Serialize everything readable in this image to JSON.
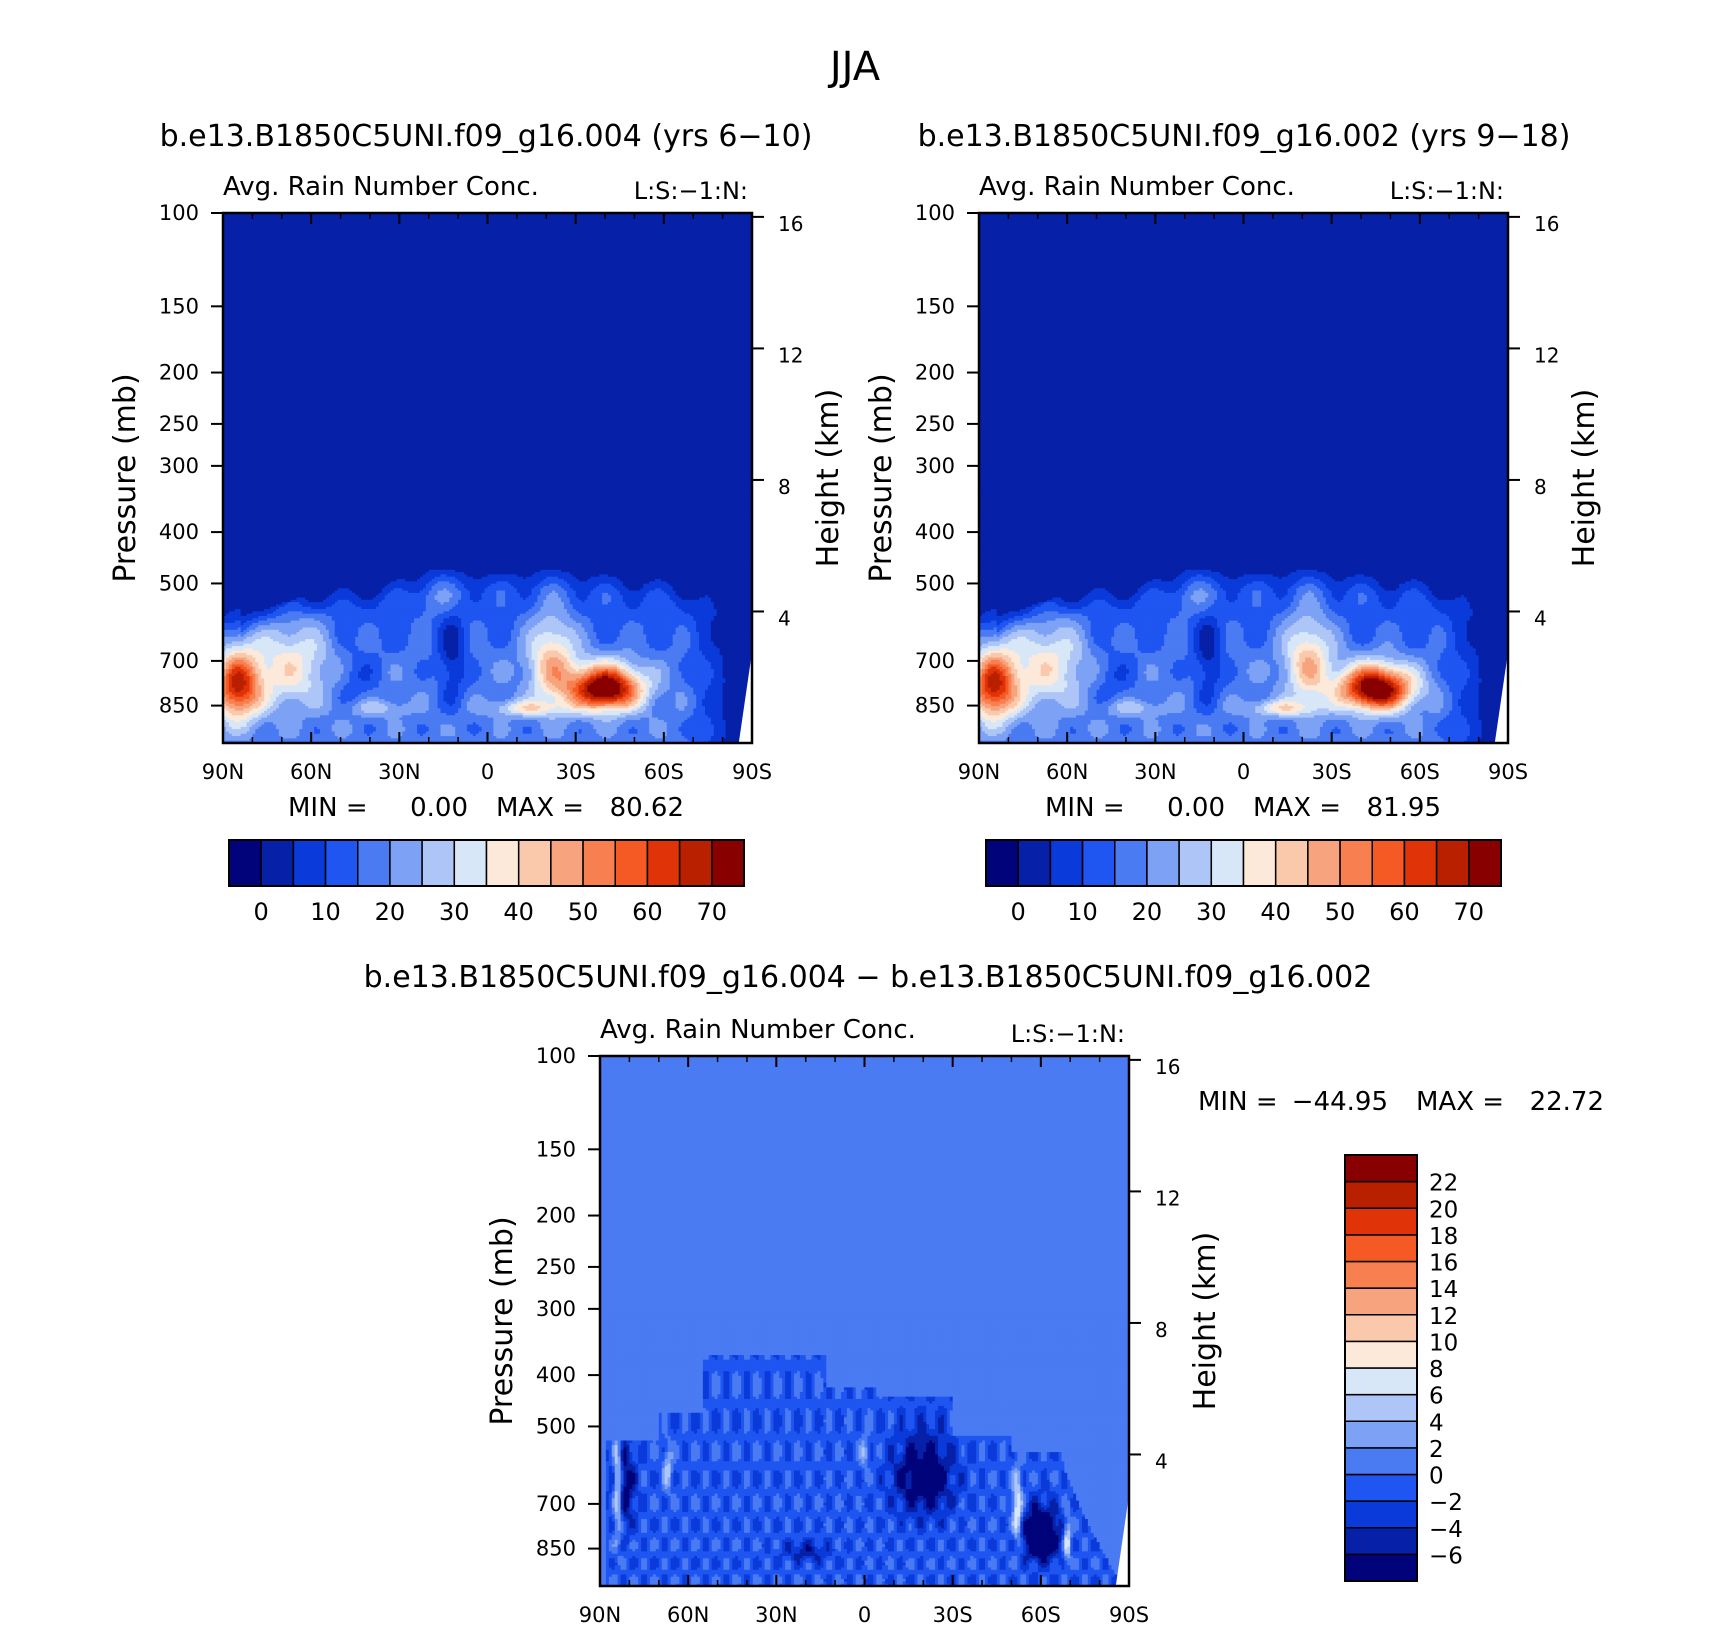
{
  "figure_title": "JJA",
  "panels": [
    {
      "id": "top-left",
      "case_title": "b.e13.B1850C5UNI.f09_g16.004 (yrs 6−10)",
      "variable_title": "Avg. Rain Number Conc.",
      "tag": "L:S:−1:N:",
      "ylabel_left": "Pressure (mb)",
      "ylabel_right": "Height (km)",
      "stats": {
        "min_label": "MIN =",
        "min_value": "0.00",
        "max_label": "MAX =",
        "max_value": "80.62"
      }
    },
    {
      "id": "top-right",
      "case_title": "b.e13.B1850C5UNI.f09_g16.002 (yrs 9−18)",
      "variable_title": "Avg. Rain Number Conc.",
      "tag": "L:S:−1:N:",
      "ylabel_left": "Pressure (mb)",
      "ylabel_right": "Height (km)",
      "stats": {
        "min_label": "MIN =",
        "min_value": "0.00",
        "max_label": "MAX =",
        "max_value": "81.95"
      }
    },
    {
      "id": "bottom",
      "case_title": "b.e13.B1850C5UNI.f09_g16.004 − b.e13.B1850C5UNI.f09_g16.002",
      "variable_title": "Avg. Rain Number Conc.",
      "tag": "L:S:−1:N:",
      "ylabel_left": "Pressure (mb)",
      "ylabel_right": "Height (km)",
      "stats": {
        "min_label": "MIN =",
        "min_value": "−44.95",
        "max_label": "MAX =",
        "max_value": "22.72"
      }
    }
  ],
  "chart_data": [
    {
      "type": "heatmap",
      "panel": "top-left",
      "title": "b.e13.B1850C5UNI.f09_g16.004 (yrs 6−10)",
      "xlabel": "",
      "ylabel": "Pressure (mb)",
      "ylabel_right": "Height (km)",
      "x_ticks": [
        "90N",
        "60N",
        "30N",
        "0",
        "30S",
        "60S",
        "90S"
      ],
      "x_tick_values": [
        90,
        60,
        30,
        0,
        -30,
        -60,
        -90
      ],
      "xlim": [
        90,
        -90
      ],
      "y_ticks": [
        100,
        150,
        200,
        250,
        300,
        400,
        500,
        700,
        850
      ],
      "ylim": [
        1000,
        100
      ],
      "y_scale": "log",
      "y_right_ticks": [
        16,
        12,
        8,
        4
      ],
      "min": 0.0,
      "max": 80.62,
      "field": {
        "max_lat": -40,
        "max_p": 790,
        "secondary_lat": 85,
        "secondary_p": 780,
        "top_p": 450
      },
      "colorbar": {
        "orientation": "horizontal",
        "levels": [
          0,
          5,
          10,
          15,
          20,
          25,
          30,
          35,
          40,
          45,
          50,
          55,
          60,
          65,
          70,
          75
        ],
        "tick_labels": [
          "0",
          "10",
          "20",
          "30",
          "40",
          "50",
          "60",
          "70"
        ]
      }
    },
    {
      "type": "heatmap",
      "panel": "top-right",
      "title": "b.e13.B1850C5UNI.f09_g16.002 (yrs 9−18)",
      "xlabel": "",
      "ylabel": "Pressure (mb)",
      "ylabel_right": "Height (km)",
      "x_ticks": [
        "90N",
        "60N",
        "30N",
        "0",
        "30S",
        "60S",
        "90S"
      ],
      "x_tick_values": [
        90,
        60,
        30,
        0,
        -30,
        -60,
        -90
      ],
      "xlim": [
        90,
        -90
      ],
      "y_ticks": [
        100,
        150,
        200,
        250,
        300,
        400,
        500,
        700,
        850
      ],
      "ylim": [
        1000,
        100
      ],
      "y_scale": "log",
      "y_right_ticks": [
        16,
        12,
        8,
        4
      ],
      "min": 0.0,
      "max": 81.95,
      "field": {
        "max_lat": -45,
        "max_p": 790,
        "secondary_lat": 85,
        "secondary_p": 780,
        "top_p": 450
      },
      "colorbar": {
        "orientation": "horizontal",
        "levels": [
          0,
          5,
          10,
          15,
          20,
          25,
          30,
          35,
          40,
          45,
          50,
          55,
          60,
          65,
          70,
          75
        ],
        "tick_labels": [
          "0",
          "10",
          "20",
          "30",
          "40",
          "50",
          "60",
          "70"
        ]
      }
    },
    {
      "type": "heatmap",
      "panel": "bottom",
      "title": "b.e13.B1850C5UNI.f09_g16.004 − b.e13.B1850C5UNI.f09_g16.002",
      "xlabel": "",
      "ylabel": "Pressure (mb)",
      "ylabel_right": "Height (km)",
      "x_ticks": [
        "90N",
        "60N",
        "30N",
        "0",
        "30S",
        "60S",
        "90S"
      ],
      "x_tick_values": [
        90,
        60,
        30,
        0,
        -30,
        -60,
        -90
      ],
      "xlim": [
        90,
        -90
      ],
      "y_ticks": [
        100,
        150,
        200,
        250,
        300,
        400,
        500,
        700,
        850
      ],
      "ylim": [
        1000,
        100
      ],
      "y_scale": "log",
      "y_right_ticks": [
        16,
        12,
        8,
        4
      ],
      "min": -44.95,
      "max": 22.72,
      "field": {
        "min_lat": -60,
        "min_p": 800,
        "top_p": 350
      },
      "colorbar": {
        "orientation": "vertical",
        "levels": [
          -6,
          -4,
          -2,
          0,
          2,
          4,
          6,
          8,
          10,
          12,
          14,
          16,
          18,
          20,
          22
        ],
        "tick_labels": [
          "−6",
          "−4",
          "−2",
          "0",
          "2",
          "4",
          "6",
          "8",
          "10",
          "12",
          "14",
          "16",
          "18",
          "20",
          "22"
        ]
      }
    }
  ],
  "colors": {
    "seq": [
      "#00037a",
      "#0620a8",
      "#0a3ad9",
      "#1f55f0",
      "#4a7bf2",
      "#7da2f5",
      "#aec6f7",
      "#d8e7f7",
      "#fde9da",
      "#fac8aa",
      "#f7a47e",
      "#f77f50",
      "#f55a24",
      "#e03308",
      "#b82000",
      "#880000"
    ],
    "diff": [
      "#00037a",
      "#0620a8",
      "#0a3ad9",
      "#1f55f0",
      "#4a7bf2",
      "#7da2f5",
      "#aec6f7",
      "#d8e7f7",
      "#fde9da",
      "#fac8aa",
      "#f7a47e",
      "#f77f50",
      "#f55a24",
      "#e03308",
      "#b82000",
      "#880000"
    ]
  }
}
